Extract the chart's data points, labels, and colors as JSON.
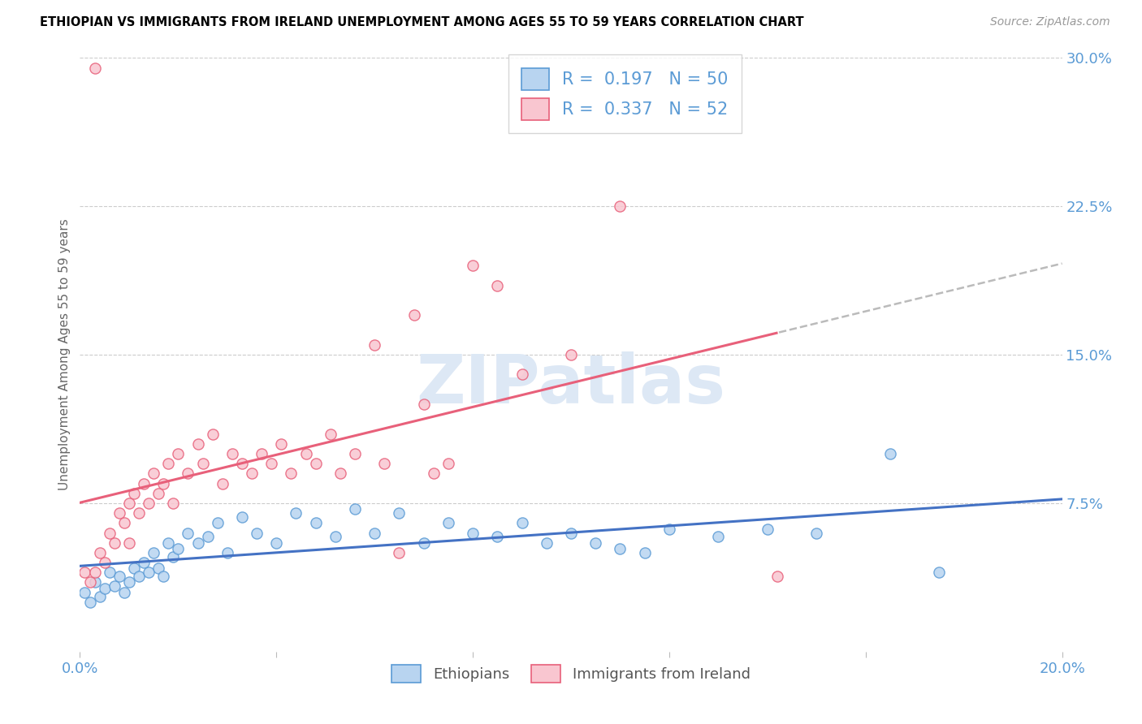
{
  "title": "ETHIOPIAN VS IMMIGRANTS FROM IRELAND UNEMPLOYMENT AMONG AGES 55 TO 59 YEARS CORRELATION CHART",
  "source_text": "Source: ZipAtlas.com",
  "ylabel": "Unemployment Among Ages 55 to 59 years",
  "xlim": [
    0.0,
    0.2
  ],
  "ylim": [
    0.0,
    0.3
  ],
  "xtick_positions": [
    0.0,
    0.04,
    0.08,
    0.12,
    0.16,
    0.2
  ],
  "xtick_labels": [
    "0.0%",
    "",
    "",
    "",
    "",
    "20.0%"
  ],
  "yticks_right": [
    0.075,
    0.15,
    0.225,
    0.3
  ],
  "ytick_labels_right": [
    "7.5%",
    "15.0%",
    "22.5%",
    "30.0%"
  ],
  "ethiopians_R": 0.197,
  "ethiopians_N": 50,
  "ireland_R": 0.337,
  "ireland_N": 52,
  "color_ethiopians_fill": "#b8d4f0",
  "color_ethiopians_edge": "#5b9bd5",
  "color_ireland_fill": "#f9c6d0",
  "color_ireland_edge": "#e8607a",
  "color_trend_ethiopians": "#4472c4",
  "color_trend_ireland": "#e8607a",
  "color_trend_dashed": "#bbbbbb",
  "watermark_text": "ZIPatlas",
  "watermark_color": "#dde8f5",
  "grid_color": "#cccccc",
  "tick_label_color": "#5b9bd5",
  "source_color": "#999999",
  "legend_text_color": "#5b9bd5",
  "ethiopians_x": [
    0.001,
    0.002,
    0.003,
    0.004,
    0.005,
    0.006,
    0.007,
    0.008,
    0.009,
    0.01,
    0.011,
    0.012,
    0.013,
    0.014,
    0.015,
    0.016,
    0.017,
    0.018,
    0.019,
    0.02,
    0.022,
    0.024,
    0.026,
    0.028,
    0.03,
    0.033,
    0.036,
    0.04,
    0.044,
    0.048,
    0.052,
    0.056,
    0.06,
    0.065,
    0.07,
    0.075,
    0.08,
    0.085,
    0.09,
    0.095,
    0.1,
    0.105,
    0.11,
    0.115,
    0.12,
    0.13,
    0.14,
    0.15,
    0.165,
    0.175
  ],
  "ethiopians_y": [
    0.03,
    0.025,
    0.035,
    0.028,
    0.032,
    0.04,
    0.033,
    0.038,
    0.03,
    0.035,
    0.042,
    0.038,
    0.045,
    0.04,
    0.05,
    0.042,
    0.038,
    0.055,
    0.048,
    0.052,
    0.06,
    0.055,
    0.058,
    0.065,
    0.05,
    0.068,
    0.06,
    0.055,
    0.07,
    0.065,
    0.058,
    0.072,
    0.06,
    0.07,
    0.055,
    0.065,
    0.06,
    0.058,
    0.065,
    0.055,
    0.06,
    0.055,
    0.052,
    0.05,
    0.062,
    0.058,
    0.062,
    0.06,
    0.1,
    0.04
  ],
  "ireland_x": [
    0.001,
    0.002,
    0.003,
    0.003,
    0.004,
    0.005,
    0.006,
    0.007,
    0.008,
    0.009,
    0.01,
    0.01,
    0.011,
    0.012,
    0.013,
    0.014,
    0.015,
    0.016,
    0.017,
    0.018,
    0.019,
    0.02,
    0.022,
    0.024,
    0.025,
    0.027,
    0.029,
    0.031,
    0.033,
    0.035,
    0.037,
    0.039,
    0.041,
    0.043,
    0.046,
    0.048,
    0.051,
    0.053,
    0.056,
    0.06,
    0.062,
    0.065,
    0.068,
    0.07,
    0.072,
    0.075,
    0.08,
    0.085,
    0.09,
    0.1,
    0.11,
    0.142
  ],
  "ireland_y": [
    0.04,
    0.035,
    0.295,
    0.04,
    0.05,
    0.045,
    0.06,
    0.055,
    0.07,
    0.065,
    0.075,
    0.055,
    0.08,
    0.07,
    0.085,
    0.075,
    0.09,
    0.08,
    0.085,
    0.095,
    0.075,
    0.1,
    0.09,
    0.105,
    0.095,
    0.11,
    0.085,
    0.1,
    0.095,
    0.09,
    0.1,
    0.095,
    0.105,
    0.09,
    0.1,
    0.095,
    0.11,
    0.09,
    0.1,
    0.155,
    0.095,
    0.05,
    0.17,
    0.125,
    0.09,
    0.095,
    0.195,
    0.185,
    0.14,
    0.15,
    0.225,
    0.038
  ]
}
